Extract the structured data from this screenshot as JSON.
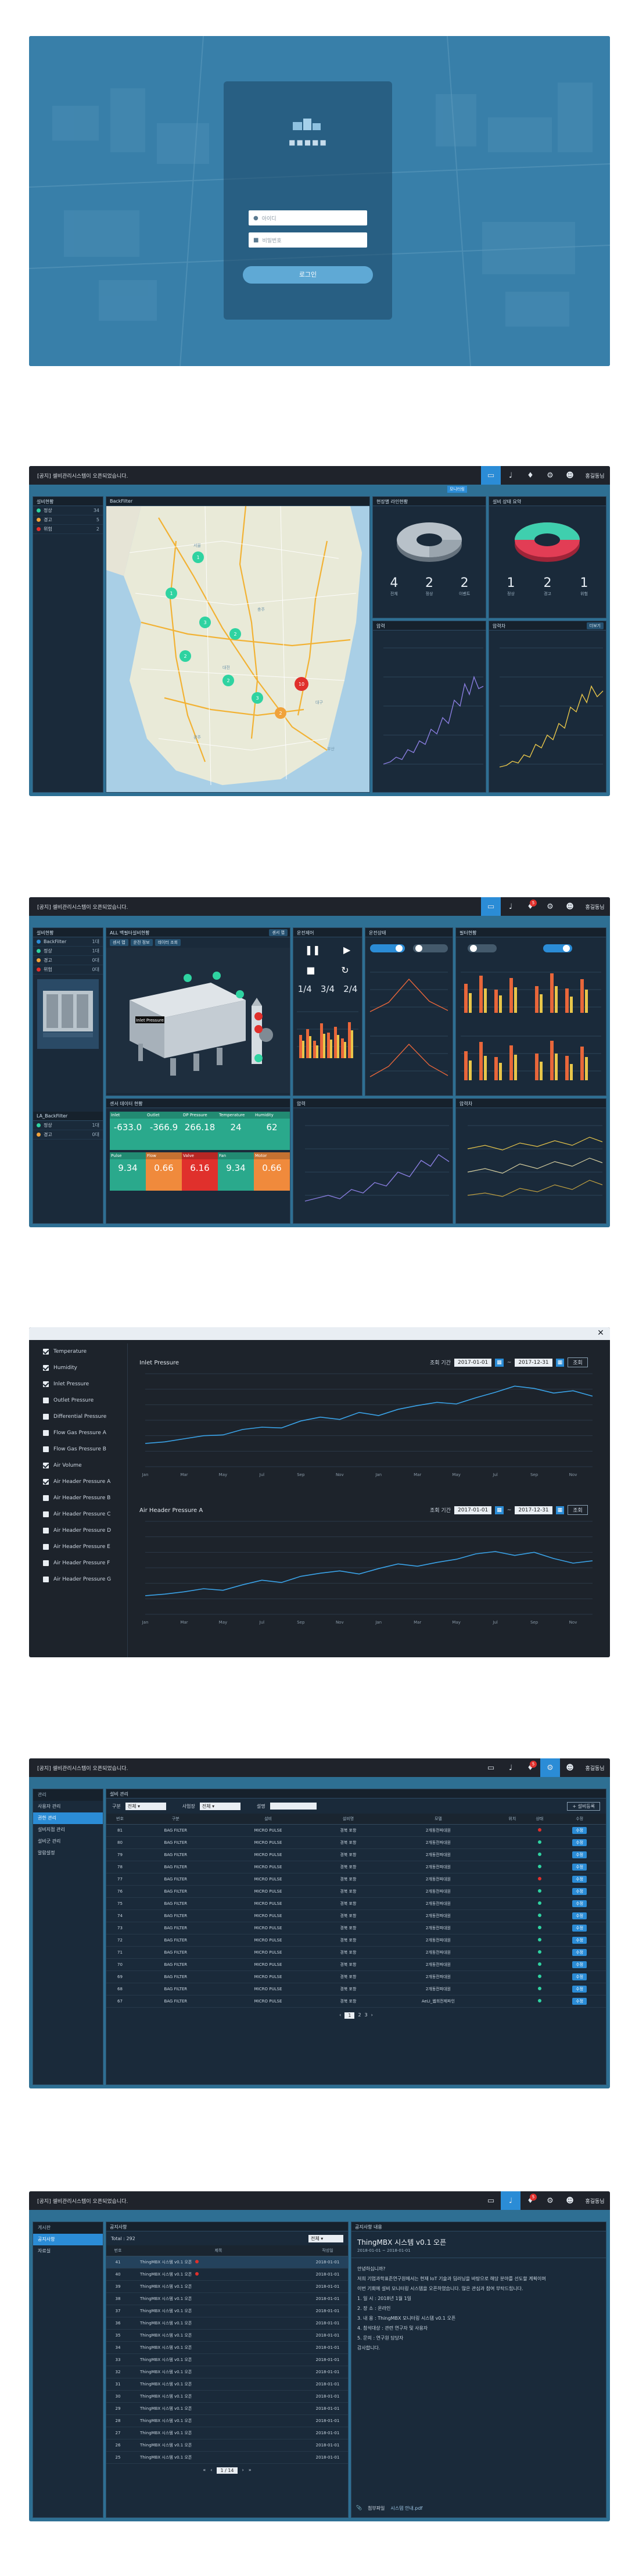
{
  "login": {
    "brand": "■■■■■",
    "id_placeholder": "아이디",
    "pw_placeholder": "비밀번호",
    "button": "로그인"
  },
  "topbar": {
    "notice": "[공지] 셀비관리시스템이 오픈되었습니다.",
    "user": "홍길동님",
    "monitor_tip": "모니터링",
    "badge": "5"
  },
  "s2": {
    "sidebar_title": "설비현황",
    "sidebar_items": [
      {
        "label": "정상",
        "count": "34"
      },
      {
        "label": "경고",
        "count": "5"
      },
      {
        "label": "위험",
        "count": "2"
      }
    ],
    "map_title": "BackFilter",
    "map_labels": [
      "1",
      "1",
      "3",
      "2",
      "2",
      "2",
      "3",
      "10",
      "2"
    ],
    "pie1_title": "현장별 라인현황",
    "pie1_stats": [
      {
        "v": "4",
        "l": "전체"
      },
      {
        "v": "2",
        "l": "정상"
      },
      {
        "v": "2",
        "l": "이벤트"
      }
    ],
    "pie2_title": "설비 상태 요약",
    "pie2_stats": [
      {
        "v": "1",
        "l": "정상"
      },
      {
        "v": "2",
        "l": "경고"
      },
      {
        "v": "1",
        "l": "위험"
      }
    ],
    "chart1_title": "압력",
    "chart2_title": "압력차",
    "more": "더보기"
  },
  "s3": {
    "sidebar_title": "설비현황",
    "sidebar_items": [
      {
        "label": "BackFilter",
        "count": "1대"
      },
      {
        "label": "정상",
        "count": "1대"
      },
      {
        "label": "경고",
        "count": "0대"
      },
      {
        "label": "위험",
        "count": "0대"
      }
    ],
    "sidebar2_title": "LA_BackFilter",
    "sidebar2_items": [
      {
        "label": "정상",
        "count": "1대"
      },
      {
        "label": "경고",
        "count": "0대"
      }
    ],
    "equip_title": "ALL 백필터설비현황",
    "equip_tabs": [
      "센서 맵",
      "운전 정보",
      "데이터 조회"
    ],
    "tag_label": "Inlet Pressure",
    "ctrl_title": "운전제어",
    "ctrl_vals": [
      "1/4",
      "3/4",
      "2/4"
    ],
    "status_title": "운전상태",
    "filter_title": "필터현황",
    "tiles": [
      {
        "t": "Inlet",
        "v": "-633.0"
      },
      {
        "t": "Outlet",
        "v": "-366.9"
      },
      {
        "t": "DP Pressure",
        "v": "266.18"
      },
      {
        "t": "Temperature",
        "v": "24"
      },
      {
        "t": "Humidity",
        "v": "62"
      },
      {
        "t": "Pulse",
        "v": "9.34"
      },
      {
        "t": "Flow",
        "v": "0.66"
      },
      {
        "t": "Valve",
        "v": "6.16"
      },
      {
        "t": "Fan",
        "v": "9.34"
      },
      {
        "t": "Motor",
        "v": "0.66"
      }
    ],
    "tiles_title": "센서 데이터 현황",
    "chart1_title": "압력",
    "chart2_title": "압력차"
  },
  "s4": {
    "checks": [
      "Temperature",
      "Humidity",
      "Inlet Pressure",
      "Outlet Pressure",
      "Differential Pressure",
      "Flow Gas Pressure A",
      "Flow Gas Pressure B",
      "Air Volume",
      "Air Header Pressure A",
      "Air Header Pressure B",
      "Air Header Pressure C",
      "Air Header Pressure D",
      "Air Header Pressure E",
      "Air Header Pressure F",
      "Air Header Pressure G"
    ],
    "checked": [
      true,
      true,
      true,
      false,
      false,
      false,
      false,
      true,
      true,
      false,
      false,
      false,
      false,
      false,
      false
    ],
    "chart1_title": "Inlet Pressure",
    "chart2_title": "Air Header Pressure A",
    "period_label": "조회 기간",
    "date_from": "2017-01-01",
    "date_to": "2017-12-31",
    "search": "조회",
    "months": [
      "Jan",
      "Feb",
      "Mar",
      "Apr",
      "May",
      "Jun",
      "Jul",
      "Aug",
      "Sep",
      "Oct",
      "Nov",
      "Dec",
      "Jan",
      "Feb",
      "Mar",
      "Apr",
      "May",
      "Jun",
      "Jul",
      "Aug",
      "Sep",
      "Oct",
      "Nov",
      "Dec"
    ],
    "chart1": [
      3,
      3.2,
      3.6,
      4,
      4.1,
      4.8,
      5.1,
      5,
      5.9,
      6.4,
      6.1,
      7,
      6.6,
      7.4,
      7.9,
      8.3,
      8.1,
      8.9,
      9.6,
      10.4,
      10.1,
      9.5,
      9.8,
      9.1
    ],
    "chart2": [
      2.4,
      2.6,
      2.9,
      3.3,
      3.1,
      3.8,
      4.4,
      4.1,
      4.9,
      5.3,
      5.6,
      5.2,
      5.9,
      6.5,
      6.2,
      6.7,
      7.1,
      7.8,
      8.1,
      7.6,
      8,
      7.2,
      6.6,
      6.9
    ]
  },
  "s5": {
    "nav_head": "관리",
    "nav": [
      "사용자 관리",
      "권한 관리",
      "설비지점 관리",
      "설비군 관리",
      "알람설정"
    ],
    "title": "설비 관리",
    "filter1": "구분",
    "filter1_val": "전체",
    "filter2": "사업장",
    "filter2_val": "전체",
    "filter3": "설명",
    "add": "+ 설비등록",
    "cols": [
      "번호",
      "구분",
      "설비",
      "설비명",
      "모델",
      "위치",
      "상태",
      "수정"
    ],
    "rows": [
      [
        "81",
        "BAG FILTER",
        "MICRO PULSE",
        "경북 포항",
        "2개동전파대원",
        "r"
      ],
      [
        "80",
        "BAG FILTER",
        "MICRO PULSE",
        "경북 포항",
        "2개동전파대원",
        "g"
      ],
      [
        "79",
        "BAG FILTER",
        "MICRO PULSE",
        "경북 포항",
        "2개동전파대원",
        "g"
      ],
      [
        "78",
        "BAG FILTER",
        "MICRO PULSE",
        "경북 포항",
        "2개동전파대원",
        "g"
      ],
      [
        "77",
        "BAG FILTER",
        "MICRO PULSE",
        "경북 포항",
        "2개동전파대원",
        "r"
      ],
      [
        "76",
        "BAG FILTER",
        "MICRO PULSE",
        "경북 포항",
        "2개동전파대원",
        "g"
      ],
      [
        "75",
        "BAG FILTER",
        "MICRO PULSE",
        "경북 포항",
        "2개동전파대원",
        "g"
      ],
      [
        "74",
        "BAG FILTER",
        "MICRO PULSE",
        "경북 포항",
        "2개동전파대원",
        "g"
      ],
      [
        "73",
        "BAG FILTER",
        "MICRO PULSE",
        "경북 포항",
        "2개동전파대원",
        "g"
      ],
      [
        "72",
        "BAG FILTER",
        "MICRO PULSE",
        "경북 포항",
        "2개동전파대원",
        "g"
      ],
      [
        "71",
        "BAG FILTER",
        "MICRO PULSE",
        "경북 포항",
        "2개동전파대원",
        "g"
      ],
      [
        "70",
        "BAG FILTER",
        "MICRO PULSE",
        "경북 포항",
        "2개동전파대원",
        "g"
      ],
      [
        "69",
        "BAG FILTER",
        "MICRO PULSE",
        "경북 포항",
        "2개동전파대원",
        "g"
      ],
      [
        "68",
        "BAG FILTER",
        "MICRO PULSE",
        "경북 포항",
        "2개동전파대원",
        "g"
      ],
      [
        "67",
        "BAG FILTER",
        "MICRO PULSE",
        "경북 포항",
        "AeLI_웹희전제파인",
        "g"
      ]
    ],
    "edit": "수정",
    "pages": [
      "1",
      "2",
      "3"
    ]
  },
  "s6": {
    "nav_head": "게시판",
    "nav": [
      "공지사항",
      "자료실"
    ],
    "title": "공지사항",
    "total": "Total : 292",
    "sel": "전체",
    "cols": [
      "번호",
      "제목",
      "작성일"
    ],
    "rows": [
      [
        "41",
        "ThingMBX 시스템 v0.1 오픈",
        "2018-01-01"
      ],
      [
        "40",
        "ThingMBX 시스템 v0.1 오픈",
        "2018-01-01"
      ],
      [
        "39",
        "ThingMBX 시스템 v0.1 오픈",
        "2018-01-01"
      ],
      [
        "38",
        "ThingMBX 시스템 v0.1 오픈",
        "2018-01-01"
      ],
      [
        "37",
        "ThingMBX 시스템 v0.1 오픈",
        "2018-01-01"
      ],
      [
        "36",
        "ThingMBX 시스템 v0.1 오픈",
        "2018-01-01"
      ],
      [
        "35",
        "ThingMBX 시스템 v0.1 오픈",
        "2018-01-01"
      ],
      [
        "34",
        "ThingMBX 시스템 v0.1 오픈",
        "2018-01-01"
      ],
      [
        "33",
        "ThingMBX 시스템 v0.1 오픈",
        "2018-01-01"
      ],
      [
        "32",
        "ThingMBX 시스템 v0.1 오픈",
        "2018-01-01"
      ],
      [
        "31",
        "ThingMBX 시스템 v0.1 오픈",
        "2018-01-01"
      ],
      [
        "30",
        "ThingMBX 시스템 v0.1 오픈",
        "2018-01-01"
      ],
      [
        "29",
        "ThingMBX 시스템 v0.1 오픈",
        "2018-01-01"
      ],
      [
        "28",
        "ThingMBX 시스템 v0.1 오픈",
        "2018-01-01"
      ],
      [
        "27",
        "ThingMBX 시스템 v0.1 오픈",
        "2018-01-01"
      ],
      [
        "26",
        "ThingMBX 시스템 v0.1 오픈",
        "2018-01-01"
      ],
      [
        "25",
        "ThingMBX 시스템 v0.1 오픈",
        "2018-01-01"
      ]
    ],
    "pager": "1 / 14",
    "detail_head": "공지사항 내용",
    "detail_title": "ThingMBX 시스템 v0.1 오픈",
    "detail_date": "2018-01-01 ~ 2018-01-01",
    "detail_body": [
      "안녕하십니까?",
      "저희 기업과학표준연구원에서는 현재 IoT 기술과 딥러닝을 바탕으로 해당 분야를 선도할 계획이며",
      "이번 기회에 설비 모니터링 시스템을 오픈하였습니다. 많은 관심과 참여 부탁드립니다.",
      "1. 일 시 : 2018년 1월 1일",
      "2. 장 소 : 온라인",
      "3. 내 용 : ThingMBX 모니터링 시스템 v0.1 오픈",
      "4. 참석대상 : 관련 연구자 및 사용자",
      "5. 문의 : 연구원 담당자",
      "감사합니다."
    ],
    "attach": "첨부파일",
    "attach_file": "시스템 안내.pdf"
  }
}
